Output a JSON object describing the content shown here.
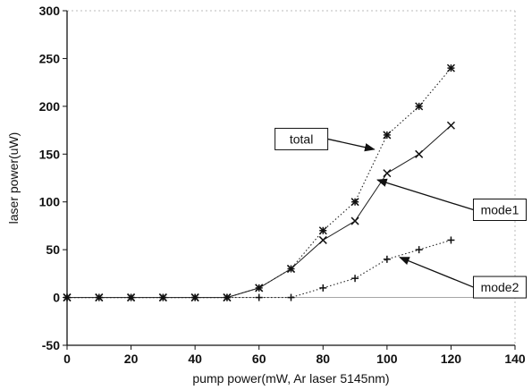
{
  "chart_data": {
    "type": "line",
    "xlabel": "pump power(mW, Ar laser 5145nm)",
    "ylabel": "laser power(uW)",
    "xlim": [
      0,
      140
    ],
    "ylim": [
      -50,
      300
    ],
    "xticks": [
      "0",
      "20",
      "40",
      "60",
      "80",
      "100",
      "120",
      "140"
    ],
    "yticks": [
      "-50",
      "0",
      "50",
      "100",
      "150",
      "200",
      "250",
      "300"
    ],
    "grid": false,
    "series": [
      {
        "key": "total",
        "marker": "asterisk",
        "line": "dotted",
        "x": [
          0,
          10,
          20,
          30,
          40,
          50,
          60,
          70,
          80,
          90,
          100,
          110,
          120
        ],
        "y": [
          0,
          0,
          0,
          0,
          0,
          0,
          10,
          30,
          70,
          100,
          170,
          200,
          240
        ]
      },
      {
        "key": "mode1",
        "marker": "x",
        "line": "solid",
        "x": [
          0,
          10,
          20,
          30,
          40,
          50,
          60,
          70,
          80,
          90,
          100,
          110,
          120
        ],
        "y": [
          0,
          0,
          0,
          0,
          0,
          0,
          10,
          30,
          60,
          80,
          130,
          150,
          180
        ]
      },
      {
        "key": "mode2",
        "marker": "plus",
        "line": "dotted",
        "x": [
          0,
          10,
          20,
          30,
          40,
          50,
          60,
          70,
          80,
          90,
          100,
          110,
          120
        ],
        "y": [
          0,
          0,
          0,
          0,
          0,
          0,
          0,
          0,
          10,
          20,
          40,
          50,
          60
        ]
      }
    ],
    "annotations": [
      {
        "text": "total",
        "target": [
          96,
          155
        ],
        "box_at": [
          65,
          177
        ]
      },
      {
        "text": "mode1",
        "target": [
          97,
          123
        ],
        "box_at": [
          127,
          103
        ]
      },
      {
        "text": "mode2",
        "target": [
          104,
          42
        ],
        "box_at": [
          127,
          22
        ]
      }
    ]
  }
}
